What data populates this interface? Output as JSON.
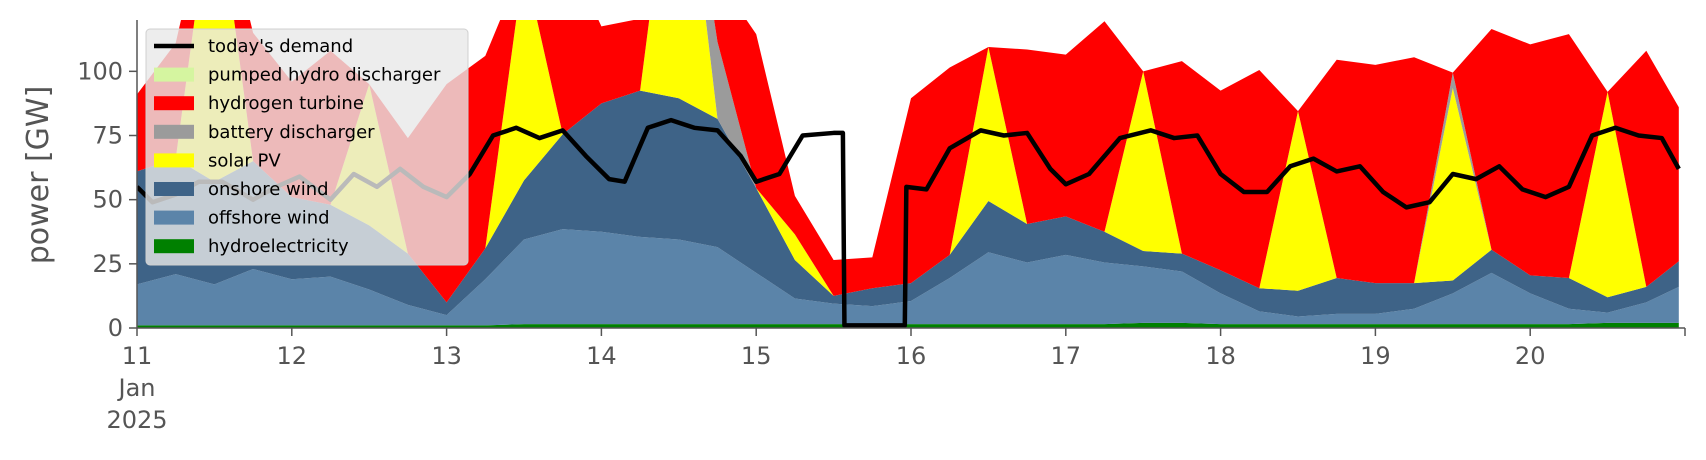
{
  "chart_data": {
    "type": "area",
    "title": "",
    "xlabel": "",
    "ylabel": "power [GW]",
    "ylim": [
      0,
      120
    ],
    "xlim": [
      "2025-01-11 00:00",
      "2025-01-20 23:00"
    ],
    "y_ticks": [
      "0",
      "25",
      "50",
      "75",
      "100"
    ],
    "x_ticks": [
      "11",
      "12",
      "13",
      "14",
      "15",
      "16",
      "17",
      "18",
      "19",
      "20"
    ],
    "x_sublabel": [
      "Jan",
      "2025"
    ],
    "grid": false,
    "legend_position": "top-left",
    "legend": [
      {
        "label": "today's demand",
        "color": "#000000",
        "kind": "line"
      },
      {
        "label": "pumped hydro discharger",
        "color": "#d5f5a0",
        "kind": "patch"
      },
      {
        "label": "hydrogen turbine",
        "color": "#ff0000",
        "kind": "patch"
      },
      {
        "label": "battery discharger",
        "color": "#9b9b9b",
        "kind": "patch"
      },
      {
        "label": "solar PV",
        "color": "#ffff00",
        "kind": "patch"
      },
      {
        "label": "onshore wind",
        "color": "#3e6387",
        "kind": "patch"
      },
      {
        "label": "offshore wind",
        "color": "#5b84a9",
        "kind": "patch"
      },
      {
        "label": "hydroelectricity",
        "color": "#008000",
        "kind": "patch"
      }
    ],
    "x": [
      11.0,
      11.25,
      11.5,
      11.75,
      12.0,
      12.25,
      12.5,
      12.75,
      13.0,
      13.25,
      13.5,
      13.75,
      14.0,
      14.25,
      14.5,
      14.75,
      15.0,
      15.25,
      15.5,
      15.75,
      16.0,
      16.25,
      16.5,
      16.75,
      17.0,
      17.25,
      17.5,
      17.75,
      18.0,
      18.25,
      18.5,
      18.75,
      19.0,
      19.25,
      19.5,
      19.75,
      20.0,
      20.25,
      20.5,
      20.75,
      20.96
    ],
    "stack_order": [
      "hydroelectricity",
      "offshore wind",
      "onshore wind",
      "solar PV",
      "battery discharger",
      "hydrogen turbine",
      "pumped hydro discharger"
    ],
    "series": [
      {
        "name": "hydroelectricity",
        "values": [
          1,
          1,
          1,
          1,
          1,
          1,
          1,
          1,
          1,
          1,
          1.5,
          1.5,
          1.5,
          1.5,
          1.5,
          1.5,
          1.5,
          1.5,
          1.5,
          1.5,
          1.5,
          1.5,
          1.5,
          1.5,
          1.5,
          1.5,
          2,
          2,
          1.5,
          1.5,
          1.5,
          1.5,
          1.5,
          1.5,
          1.5,
          1.5,
          1.5,
          1.5,
          2,
          2,
          2
        ]
      },
      {
        "name": "offshore wind",
        "values": [
          16,
          20,
          16,
          22,
          18,
          19,
          14,
          8,
          4,
          18,
          33,
          37,
          36,
          34,
          33,
          30,
          20,
          10,
          8,
          7,
          9,
          18,
          28,
          24,
          27,
          24,
          22,
          20,
          12,
          5,
          3,
          4,
          4,
          6,
          12,
          20,
          12,
          6,
          4,
          8,
          14
        ]
      },
      {
        "name": "onshore wind",
        "values": [
          44,
          45,
          40,
          42,
          32,
          28,
          25,
          20,
          5,
          12,
          23,
          37,
          50,
          57,
          55,
          50,
          33,
          15,
          3,
          7,
          7,
          9,
          20,
          15,
          15,
          12,
          6,
          7,
          9,
          9,
          10,
          14,
          12,
          10,
          5,
          9,
          7,
          12,
          6,
          6,
          10
        ]
      },
      {
        "name": "solar PV",
        "values": [
          0,
          0,
          120,
          0,
          0,
          0,
          55,
          0,
          0,
          0,
          85,
          0,
          0,
          0,
          120,
          0,
          0,
          10,
          0,
          0,
          0,
          0,
          60,
          0,
          0,
          0,
          70,
          0,
          0,
          0,
          70,
          0,
          0,
          0,
          75,
          0,
          0,
          0,
          80,
          0,
          0
        ]
      },
      {
        "name": "battery discharger",
        "values": [
          0,
          0,
          0,
          0,
          0,
          0,
          0,
          0,
          0,
          0,
          0,
          0,
          0,
          0,
          0,
          30,
          0,
          0,
          0,
          0,
          0,
          0,
          0,
          0,
          0,
          0,
          0,
          0,
          0,
          0,
          0,
          0,
          0,
          0,
          6,
          0,
          0,
          0,
          0,
          0,
          0
        ]
      },
      {
        "name": "hydrogen turbine",
        "values": [
          30,
          45,
          0,
          50,
          45,
          60,
          0,
          45,
          85,
          75,
          0,
          75,
          30,
          28,
          0,
          25,
          60,
          15,
          14,
          12,
          72,
          73,
          0,
          68,
          63,
          82,
          0,
          75,
          70,
          85,
          0,
          85,
          85,
          88,
          0,
          86,
          90,
          95,
          0,
          92,
          60
        ]
      },
      {
        "name": "pumped hydro discharger",
        "values": [
          0,
          0,
          0,
          0,
          0,
          0,
          0,
          0,
          0,
          0,
          0,
          0,
          0,
          0,
          0,
          0,
          0,
          0,
          0,
          0,
          0,
          0,
          0,
          0,
          0,
          0,
          0,
          0,
          0,
          0,
          0,
          0,
          0,
          0,
          0,
          0,
          0,
          0,
          0,
          0,
          0
        ]
      }
    ],
    "demand": {
      "name": "today's demand",
      "x": [
        11.0,
        11.1,
        11.25,
        11.4,
        11.55,
        11.75,
        11.9,
        12.05,
        12.25,
        12.4,
        12.55,
        12.7,
        12.85,
        13.0,
        13.15,
        13.3,
        13.45,
        13.6,
        13.75,
        13.9,
        14.05,
        14.15,
        14.3,
        14.45,
        14.6,
        14.75,
        14.9,
        15.0,
        15.15,
        15.3,
        15.5,
        15.56,
        15.57,
        15.96,
        15.97,
        16.1,
        16.25,
        16.45,
        16.6,
        16.75,
        16.9,
        17.0,
        17.15,
        17.35,
        17.55,
        17.7,
        17.85,
        18.0,
        18.15,
        18.3,
        18.45,
        18.6,
        18.75,
        18.9,
        19.05,
        19.2,
        19.35,
        19.5,
        19.65,
        19.8,
        19.95,
        20.1,
        20.25,
        20.4,
        20.55,
        20.7,
        20.85,
        20.96
      ],
      "values": [
        55,
        49,
        52,
        57,
        57,
        50,
        55,
        59,
        50,
        60,
        55,
        62,
        55,
        51,
        60,
        75,
        78,
        74,
        77,
        67,
        58,
        57,
        78,
        81,
        78,
        77,
        67,
        57,
        60,
        75,
        76,
        76,
        1,
        1,
        55,
        54,
        70,
        77,
        75,
        76,
        62,
        56,
        60,
        74,
        77,
        74,
        75,
        60,
        53,
        53,
        63,
        66,
        61,
        63,
        53,
        47,
        49,
        60,
        58,
        63,
        54,
        51,
        55,
        75,
        78,
        75,
        74,
        62
      ]
    }
  }
}
